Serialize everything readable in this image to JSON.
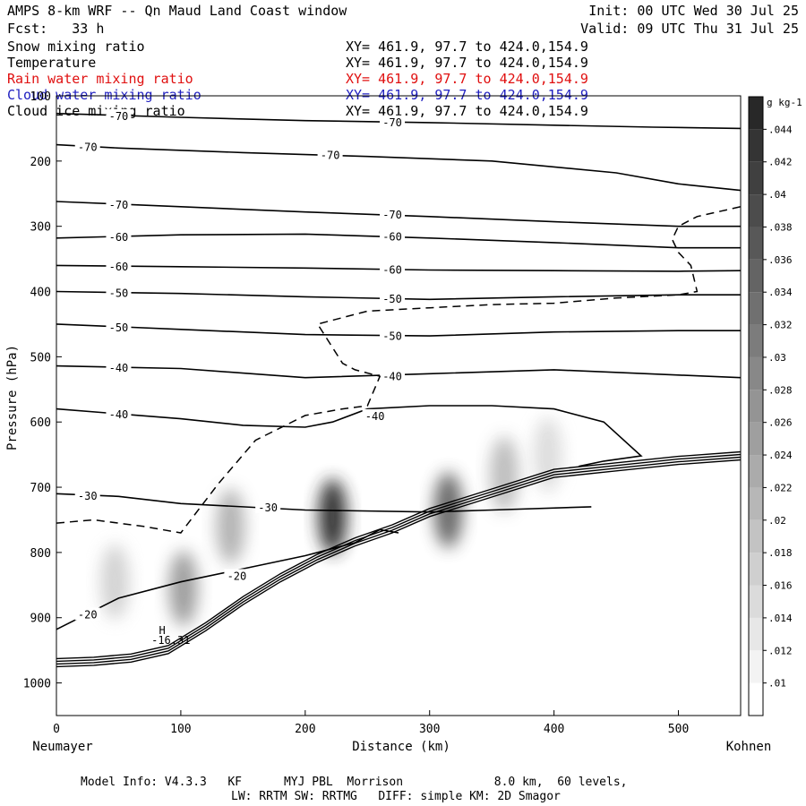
{
  "header": {
    "title": "AMPS 8-km WRF -- Qn Maud Land Coast window",
    "init": "Init: 00 UTC Wed 30 Jul 25",
    "forecast": "Fcst:   33 h",
    "valid": "Valid: 09 UTC Thu 31 Jul 25"
  },
  "legend": {
    "items": [
      {
        "label": "Snow mixing ratio",
        "xy": "XY= 461.9, 97.7 to 424.0,154.9",
        "color": "#000000"
      },
      {
        "label": "Temperature",
        "xy": "XY= 461.9, 97.7 to 424.0,154.9",
        "color": "#000000"
      },
      {
        "label": "Rain water mixing ratio",
        "xy": "XY= 461.9, 97.7 to 424.0,154.9",
        "color": "#e01010"
      },
      {
        "label": "Cloud water mixing ratio",
        "xy": "XY= 461.9, 97.7 to 424.0,154.9",
        "color": "#2020c0"
      },
      {
        "label": "Cloud ice mixing ratio",
        "xy": "XY= 461.9, 97.7 to 424.0,154.9",
        "color": "#000000"
      }
    ]
  },
  "footer": {
    "line1": "Model Info: V4.3.3   KF      MYJ PBL  Morrison             8.0 km,  60 levels,",
    "line2": "LW: RRTM SW: RRTMG   DIFF: simple KM: 2D Smagor"
  },
  "chart_data": {
    "type": "heatmap",
    "title": "",
    "xlabel": "Distance (km)",
    "ylabel": "Pressure (hPa)",
    "xlim": [
      0,
      550
    ],
    "ylim": [
      1050,
      100
    ],
    "x_ticks": [
      0,
      100,
      200,
      300,
      400,
      500
    ],
    "y_ticks": [
      100,
      200,
      300,
      400,
      500,
      600,
      700,
      800,
      900,
      1000
    ],
    "x_end_labels": {
      "left": "Neumayer",
      "right": "Kohnen"
    },
    "colorbar": {
      "unit": "g kg-1",
      "ticks": [
        ".01",
        ".012",
        ".014",
        ".016",
        ".018",
        ".02",
        ".022",
        ".024",
        ".026",
        ".028",
        ".03",
        ".032",
        ".034",
        ".036",
        ".038",
        ".04",
        ".042",
        ".044"
      ],
      "min": 0.009,
      "max": 0.046
    },
    "snow_maxima": [
      {
        "x": 47,
        "p": 845,
        "v": 0.014
      },
      {
        "x": 102,
        "p": 855,
        "v": 0.024
      },
      {
        "x": 140,
        "p": 760,
        "v": 0.02
      },
      {
        "x": 222,
        "p": 745,
        "v": 0.044
      },
      {
        "x": 315,
        "p": 735,
        "v": 0.034
      },
      {
        "x": 360,
        "p": 680,
        "v": 0.018
      },
      {
        "x": 395,
        "p": 650,
        "v": 0.012
      }
    ],
    "isotherms": [
      {
        "value": -70,
        "x": [
          0,
          100,
          200,
          300,
          400,
          480,
          550
        ],
        "p": [
          127,
          133,
          138,
          141,
          145,
          148,
          150
        ]
      },
      {
        "value": -70,
        "x": [
          0,
          50,
          150,
          250,
          350,
          450,
          500,
          550
        ],
        "p": [
          175,
          180,
          187,
          193,
          200,
          218,
          235,
          245
        ]
      },
      {
        "value": -70,
        "x": [
          0,
          100,
          200,
          300,
          400,
          500,
          550
        ],
        "p": [
          262,
          270,
          278,
          285,
          293,
          300,
          300
        ]
      },
      {
        "value": -60,
        "x": [
          0,
          100,
          200,
          300,
          400,
          500,
          550
        ],
        "p": [
          318,
          313,
          312,
          318,
          325,
          333,
          333
        ]
      },
      {
        "value": -60,
        "x": [
          0,
          100,
          200,
          300,
          400,
          500,
          550
        ],
        "p": [
          360,
          362,
          364,
          367,
          368,
          369,
          368
        ]
      },
      {
        "value": -50,
        "x": [
          0,
          100,
          200,
          300,
          400,
          500,
          550
        ],
        "p": [
          400,
          403,
          408,
          412,
          408,
          405,
          405
        ]
      },
      {
        "value": -50,
        "x": [
          0,
          100,
          200,
          300,
          400,
          500,
          550
        ],
        "p": [
          450,
          458,
          466,
          468,
          462,
          460,
          460
        ]
      },
      {
        "value": -40,
        "x": [
          0,
          100,
          200,
          300,
          400,
          500,
          550
        ],
        "p": [
          514,
          518,
          532,
          526,
          520,
          528,
          532
        ]
      },
      {
        "value": -40,
        "x": [
          0,
          100,
          150,
          200,
          222,
          250,
          300,
          350,
          400,
          440,
          470,
          440,
          420
        ],
        "p": [
          580,
          595,
          605,
          608,
          600,
          580,
          575,
          575,
          580,
          600,
          652,
          660,
          668
        ]
      },
      {
        "value": -30,
        "x": [
          0,
          50,
          100,
          200,
          300,
          350,
          430
        ],
        "p": [
          710,
          714,
          725,
          735,
          738,
          735,
          730
        ]
      },
      {
        "value": -20,
        "x": [
          0,
          50,
          100,
          150,
          200,
          240,
          260,
          275
        ],
        "p": [
          918,
          870,
          845,
          825,
          805,
          785,
          765,
          770
        ]
      }
    ],
    "cloud_ice_contour_dashed": {
      "x": [
        0,
        30,
        70,
        100,
        130,
        160,
        200,
        230,
        250,
        260,
        240,
        230,
        210,
        250,
        300,
        350,
        400,
        450,
        500,
        515,
        510,
        500,
        495,
        500,
        515,
        550
      ],
      "p": [
        755,
        750,
        760,
        770,
        695,
        628,
        590,
        580,
        575,
        530,
        520,
        510,
        450,
        430,
        425,
        420,
        418,
        410,
        405,
        400,
        360,
        340,
        320,
        300,
        285,
        270
      ]
    },
    "annotations": [
      {
        "text": "H",
        "x": 85,
        "p": 925
      },
      {
        "text": "-16.31",
        "x": 92,
        "p": 940
      }
    ],
    "terrain_p": {
      "x": [
        0,
        30,
        60,
        90,
        120,
        150,
        180,
        210,
        240,
        270,
        300,
        350,
        400,
        450,
        500,
        550
      ],
      "p": [
        975,
        973,
        968,
        955,
        920,
        880,
        845,
        815,
        790,
        770,
        745,
        715,
        685,
        675,
        665,
        658
      ]
    }
  }
}
